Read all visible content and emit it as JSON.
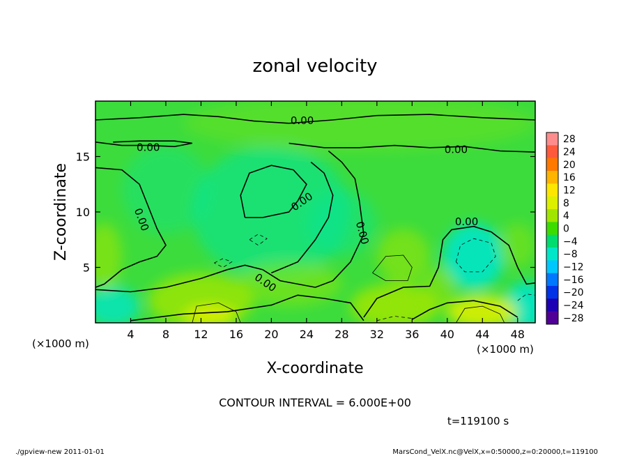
{
  "chart_data": {
    "type": "heatmap",
    "title": "zonal velocity",
    "xlabel": "X-coordinate",
    "ylabel": "Z-coordinate",
    "x_unit_note": "(×1000 m)",
    "x_unit_note_right": "(×1000 m)",
    "xlim": [
      0,
      50
    ],
    "ylim": [
      0,
      20
    ],
    "x_ticks": [
      4,
      8,
      12,
      16,
      20,
      24,
      28,
      32,
      36,
      40,
      44,
      48
    ],
    "y_ticks": [
      5,
      10,
      15
    ],
    "contour_interval_text": "CONTOUR INTERVAL = 6.000E+00",
    "time_text": "t=119100 s",
    "contour_labels": [
      "0.00",
      "0.00",
      "0.00",
      "0.00",
      "0.00",
      "0.00",
      "0.00",
      "0.00"
    ],
    "colorbar": {
      "levels": [
        28,
        24,
        20,
        16,
        12,
        8,
        4,
        0,
        -4,
        -8,
        -12,
        -16,
        -20,
        -24,
        -28
      ],
      "colors": [
        "#ff8c8c",
        "#ff5a3c",
        "#ff7800",
        "#ffb400",
        "#ffe600",
        "#dcf000",
        "#a0e600",
        "#3cdc00",
        "#00dc6e",
        "#00e6c8",
        "#00c8ff",
        "#0078ff",
        "#0032e6",
        "#1e00b4",
        "#500096"
      ]
    },
    "field_colors": {
      "background": "#3cdc3c",
      "weak_negative": "#00e6a0",
      "negative": "#00e6c8",
      "positive": "#a0e600",
      "strong_positive": "#dcf000"
    }
  },
  "footer": {
    "left": "./gpview-new  2011-01-01",
    "right": "MarsCond_VelX.nc@VelX,x=0:50000,z=0:20000,t=119100"
  }
}
